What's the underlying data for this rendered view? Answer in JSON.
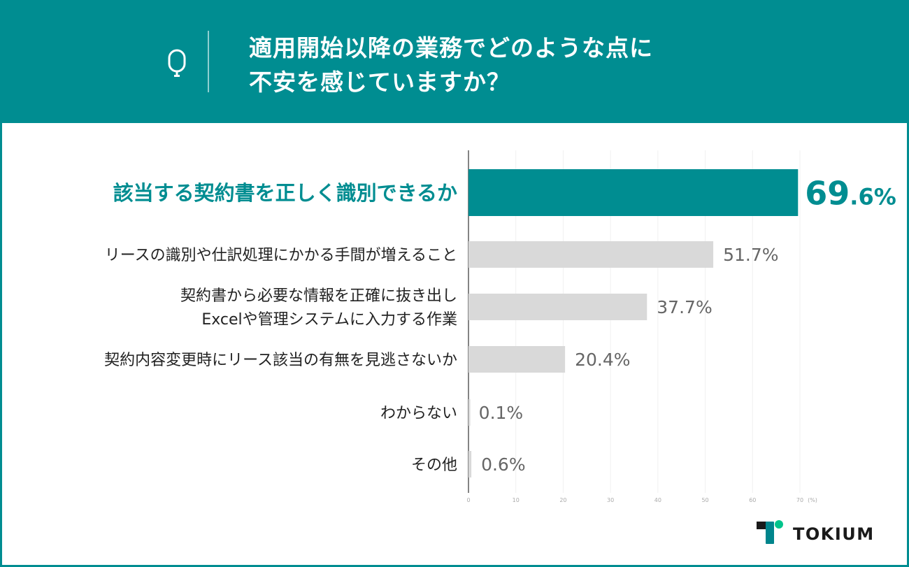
{
  "header": {
    "icon": "q-icon",
    "title_lines": [
      "適用開始以降の業務でどのような点に",
      "不安を感じていますか？"
    ]
  },
  "colors": {
    "accent": "#008d91",
    "bar_default": "#d9d9d9",
    "label_default": "#666666",
    "logo_green": "#00c48c"
  },
  "logo": {
    "text": "TOKIUM"
  },
  "chart_data": {
    "type": "bar",
    "orientation": "horizontal",
    "categories": [
      [
        "該当する契約書を正しく識別できるか"
      ],
      [
        "リースの識別や仕訳処理にかかる手間が増えること"
      ],
      [
        "契約書から必要な情報を正確に抜き出し",
        "Excelや管理システムに入力する作業"
      ],
      [
        "契約内容変更時にリース該当の有無を見逃さないか"
      ],
      [
        "わからない"
      ],
      [
        "その他"
      ]
    ],
    "values": [
      69.6,
      51.7,
      37.7,
      20.4,
      0.1,
      0.6
    ],
    "value_labels": [
      "69.6%",
      "51.7%",
      "37.7%",
      "20.4%",
      "0.1%",
      "0.6%"
    ],
    "highlighted_index": 0,
    "xlim": [
      0,
      70
    ],
    "xticks": [
      "0",
      "10",
      "20",
      "30",
      "40",
      "50",
      "60",
      "70"
    ],
    "xunit": "(%)",
    "grid": true
  }
}
